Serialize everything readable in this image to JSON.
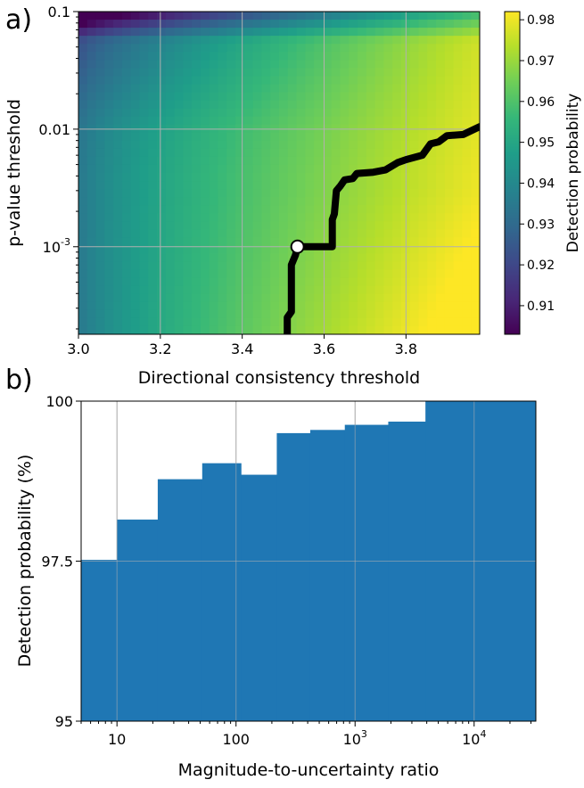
{
  "chart_data": [
    {
      "type": "heatmap",
      "panel_label": "a)",
      "xlabel": "Directional consistency threshold",
      "ylabel": "p-value threshold",
      "xlim": [
        3.0,
        3.98
      ],
      "ylim": [
        0.00018,
        0.1
      ],
      "yscale": "log",
      "grid": true,
      "x_ticks": [
        {
          "value": 3.0,
          "label": "3.0"
        },
        {
          "value": 3.2,
          "label": "3.2"
        },
        {
          "value": 3.4,
          "label": "3.4"
        },
        {
          "value": 3.6,
          "label": "3.6"
        },
        {
          "value": 3.8,
          "label": "3.8"
        }
      ],
      "y_ticks": [
        {
          "value": 0.1,
          "label": "0.1"
        },
        {
          "value": 0.01,
          "label": "0.01"
        },
        {
          "value": 0.001,
          "label": "10",
          "exponent": "-3"
        }
      ],
      "colorbar": {
        "label": "Detection probability",
        "range": [
          0.903,
          0.982
        ],
        "colormap": "viridis",
        "ticks": [
          "0.91",
          "0.92",
          "0.93",
          "0.94",
          "0.95",
          "0.96",
          "0.97",
          "0.98"
        ]
      },
      "boundary_contour": {
        "color": "#000000",
        "points": [
          [
            3.51,
            0.00018
          ],
          [
            3.51,
            0.00025
          ],
          [
            3.52,
            0.00028
          ],
          [
            3.52,
            0.0007
          ],
          [
            3.53,
            0.00085
          ],
          [
            3.535,
            0.001
          ],
          [
            3.62,
            0.001
          ],
          [
            3.62,
            0.0017
          ],
          [
            3.625,
            0.0019
          ],
          [
            3.63,
            0.003
          ],
          [
            3.64,
            0.0033
          ],
          [
            3.65,
            0.0037
          ],
          [
            3.67,
            0.0038
          ],
          [
            3.68,
            0.0042
          ],
          [
            3.72,
            0.0043
          ],
          [
            3.75,
            0.0045
          ],
          [
            3.78,
            0.0052
          ],
          [
            3.8,
            0.0055
          ],
          [
            3.84,
            0.006
          ],
          [
            3.86,
            0.0075
          ],
          [
            3.88,
            0.0078
          ],
          [
            3.9,
            0.0088
          ],
          [
            3.94,
            0.009
          ],
          [
            3.98,
            0.0105
          ]
        ]
      },
      "marker": {
        "x": 3.535,
        "y": 0.001,
        "fill": "#ffffff",
        "edge": "#000000"
      }
    },
    {
      "type": "bar",
      "panel_label": "b)",
      "xlabel": "Magnitude-to-uncertainty ratio",
      "ylabel": "Detection probability (%)",
      "xscale": "log",
      "xlim": [
        5,
        33000
      ],
      "ylim": [
        95,
        100
      ],
      "grid": true,
      "bar_color": "#1f77b4",
      "bins": [
        {
          "x0": 5,
          "x1": 10,
          "value": 97.52
        },
        {
          "x0": 10,
          "x1": 22,
          "value": 98.15
        },
        {
          "x0": 22,
          "x1": 52,
          "value": 98.78
        },
        {
          "x0": 52,
          "x1": 110,
          "value": 99.03
        },
        {
          "x0": 110,
          "x1": 220,
          "value": 98.85
        },
        {
          "x0": 220,
          "x1": 420,
          "value": 99.5
        },
        {
          "x0": 420,
          "x1": 820,
          "value": 99.55
        },
        {
          "x0": 820,
          "x1": 1900,
          "value": 99.63
        },
        {
          "x0": 1900,
          "x1": 3900,
          "value": 99.68
        },
        {
          "x0": 3900,
          "x1": 33000,
          "value": 100
        }
      ],
      "x_ticks": [
        {
          "value": 10,
          "label": "10"
        },
        {
          "value": 100,
          "label": "100"
        },
        {
          "value": 1000,
          "label": "10",
          "exponent": "3"
        },
        {
          "value": 10000,
          "label": "10",
          "exponent": "4"
        }
      ],
      "y_ticks": [
        {
          "value": 95,
          "label": "95"
        },
        {
          "value": 97.5,
          "label": "97.5"
        },
        {
          "value": 100,
          "label": "100"
        }
      ]
    }
  ]
}
